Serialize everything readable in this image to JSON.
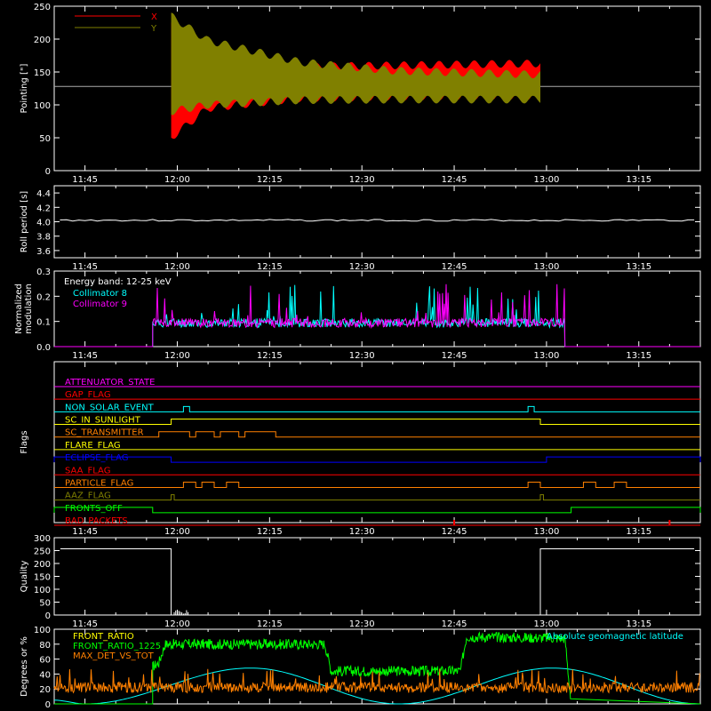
{
  "time_axis": {
    "range": [
      "11:40",
      "13:25"
    ],
    "tick_labels": [
      "11:45",
      "12:00",
      "12:15",
      "12:30",
      "12:45",
      "13:00",
      "13:15"
    ]
  },
  "chart_data": [
    {
      "id": "pointing",
      "type": "area",
      "ylabel": "Pointing [\"]",
      "ylim": [
        0,
        250
      ],
      "yticks": [
        0,
        50,
        100,
        150,
        200,
        250
      ],
      "baseline": 128,
      "legend": [
        "X",
        "Y"
      ],
      "series": [
        {
          "name": "X",
          "color": "#ff0000",
          "x": [
            "11:59",
            "12:05",
            "12:20",
            "12:35",
            "12:50",
            "12:59"
          ],
          "low": [
            50,
            95,
            110,
            112,
            113,
            113
          ],
          "high": [
            225,
            180,
            158,
            160,
            162,
            163
          ]
        },
        {
          "name": "Y",
          "color": "#808000",
          "x": [
            "11:59",
            "12:05",
            "12:20",
            "12:35",
            "12:50",
            "12:59"
          ],
          "low": [
            90,
            100,
            107,
            108,
            108,
            108
          ],
          "high": [
            235,
            198,
            165,
            152,
            148,
            146
          ]
        }
      ]
    },
    {
      "id": "roll",
      "type": "line",
      "ylabel": "Roll period [s]",
      "ylim": [
        3.5,
        4.5
      ],
      "yticks": [
        3.6,
        3.8,
        4.0,
        4.2,
        4.4
      ],
      "series": [
        {
          "name": "",
          "color": "#ffffff",
          "x": [
            "11:41",
            "13:24"
          ],
          "y": [
            4.02,
            4.02
          ]
        }
      ]
    },
    {
      "id": "modulation",
      "type": "bar",
      "ylabel": "Normalized modulation",
      "ylim": [
        0,
        0.3
      ],
      "yticks": [
        0.0,
        0.1,
        0.2,
        0.3
      ],
      "legend_title": "Energy band: 12-25 keV",
      "series": [
        {
          "name": "Collimator 8",
          "color": "#00ffff",
          "active": [
            "11:56",
            "13:03"
          ],
          "base": 0.09
        },
        {
          "name": "Collimator 9",
          "color": "#ff00ff",
          "active": [
            "11:56",
            "13:03"
          ],
          "base": 0.09
        }
      ]
    },
    {
      "id": "flags",
      "type": "line",
      "ylabel": "Flags",
      "series": [
        {
          "name": "ATTENUATOR_STATE",
          "color": "#ff00ff",
          "segments": []
        },
        {
          "name": "GAP_FLAG",
          "color": "#ff0000",
          "segments": []
        },
        {
          "name": "NON_SOLAR_EVENT",
          "color": "#00ffff",
          "segments": [
            [
              "12:01",
              "12:02"
            ],
            [
              "12:57",
              "12:58"
            ]
          ]
        },
        {
          "name": "SC_IN_SUNLIGHT",
          "color": "#ffff00",
          "segments": [
            [
              "11:59",
              "12:59"
            ]
          ]
        },
        {
          "name": "SC_TRANSMITTER",
          "color": "#ff8000",
          "segments": [
            [
              "11:57",
              "12:02"
            ],
            [
              "12:03",
              "12:06"
            ],
            [
              "12:07",
              "12:10"
            ],
            [
              "12:11",
              "12:16"
            ]
          ]
        },
        {
          "name": "FLARE_FLAG",
          "color": "#ffff00",
          "segments": []
        },
        {
          "name": "ECLIPSE_FLAG",
          "color": "#0000ff",
          "segments": [
            [
              "11:40",
              "11:59"
            ],
            [
              "13:00",
              "13:25"
            ]
          ]
        },
        {
          "name": "SAA_FLAG",
          "color": "#ff0000",
          "segments": []
        },
        {
          "name": "PARTICLE_FLAG",
          "color": "#ff8000",
          "segments": [
            [
              "12:01",
              "12:03"
            ],
            [
              "12:04",
              "12:06"
            ],
            [
              "12:08",
              "12:10"
            ],
            [
              "12:57",
              "12:59"
            ],
            [
              "13:06",
              "13:08"
            ],
            [
              "13:11",
              "13:13"
            ]
          ]
        },
        {
          "name": "AAZ_FLAG",
          "color": "#808000",
          "segments": [
            [
              "11:59",
              "11:59.5"
            ],
            [
              "12:59",
              "12:59.5"
            ]
          ]
        },
        {
          "name": "FRONTS_OFF",
          "color": "#00ff00",
          "segments": [
            [
              "11:40",
              "11:56"
            ],
            [
              "13:04",
              "13:25"
            ]
          ]
        },
        {
          "name": "BAD_PACKETS",
          "color": "#ff0000",
          "segments": [],
          "spikes": [
            "12:45",
            "13:20"
          ]
        }
      ]
    },
    {
      "id": "quality",
      "type": "line",
      "ylabel": "Quality",
      "ylim": [
        0,
        300
      ],
      "yticks": [
        0,
        50,
        100,
        150,
        200,
        250,
        300
      ],
      "series": [
        {
          "name": "",
          "color": "#ffffff",
          "x": [
            "11:41",
            "11:59",
            "11:59",
            "12:59",
            "12:59",
            "13:24"
          ],
          "y": [
            257,
            257,
            0,
            0,
            257,
            257
          ]
        }
      ]
    },
    {
      "id": "front",
      "type": "line",
      "ylabel": "Degrees or %",
      "ylim": [
        0,
        100
      ],
      "yticks": [
        0,
        20,
        40,
        60,
        80,
        100
      ],
      "series": [
        {
          "name": "FRONT_RATIO",
          "color": "#ffff00"
        },
        {
          "name": "FRONT_RATIO_1225",
          "color": "#00ff00",
          "x": [
            "11:56",
            "11:57",
            "11:58",
            "12:24",
            "12:25",
            "12:46",
            "12:47",
            "13:03",
            "13:04"
          ],
          "y": [
            50,
            55,
            80,
            80,
            44,
            44,
            90,
            88,
            0
          ]
        },
        {
          "name": "MAX_DET_VS_TOT",
          "color": "#ff8000",
          "mean": 22
        },
        {
          "name": "Absolute geomagnetic latitude",
          "color": "#00ffff",
          "x": [
            "11:40",
            "11:45",
            "12:12",
            "12:36",
            "13:01",
            "13:25"
          ],
          "y": [
            5,
            0,
            48,
            0,
            48,
            0
          ]
        }
      ]
    }
  ]
}
